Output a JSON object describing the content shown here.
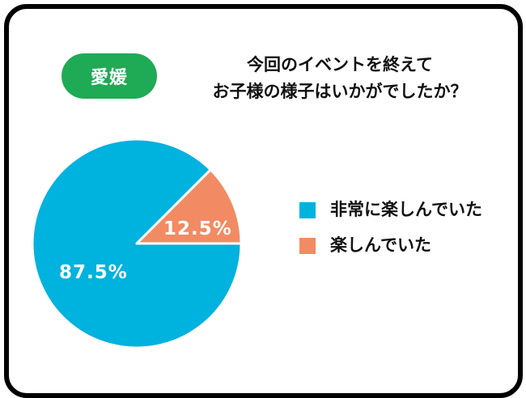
{
  "badge": {
    "label": "愛媛",
    "color": "#1faa55"
  },
  "title": {
    "line1": "今回のイベントを終えて",
    "line2": "お子様の様子はいかがでしたか？"
  },
  "chart_data": {
    "type": "pie",
    "slices": [
      {
        "label": "非常に楽しんでいた",
        "value": 87.5,
        "value_label": "87.5%",
        "color": "#00b2de"
      },
      {
        "label": "楽しんでいた",
        "value": 12.5,
        "value_label": "12.5%",
        "color": "#f28b63"
      }
    ],
    "legend_position": "right"
  }
}
